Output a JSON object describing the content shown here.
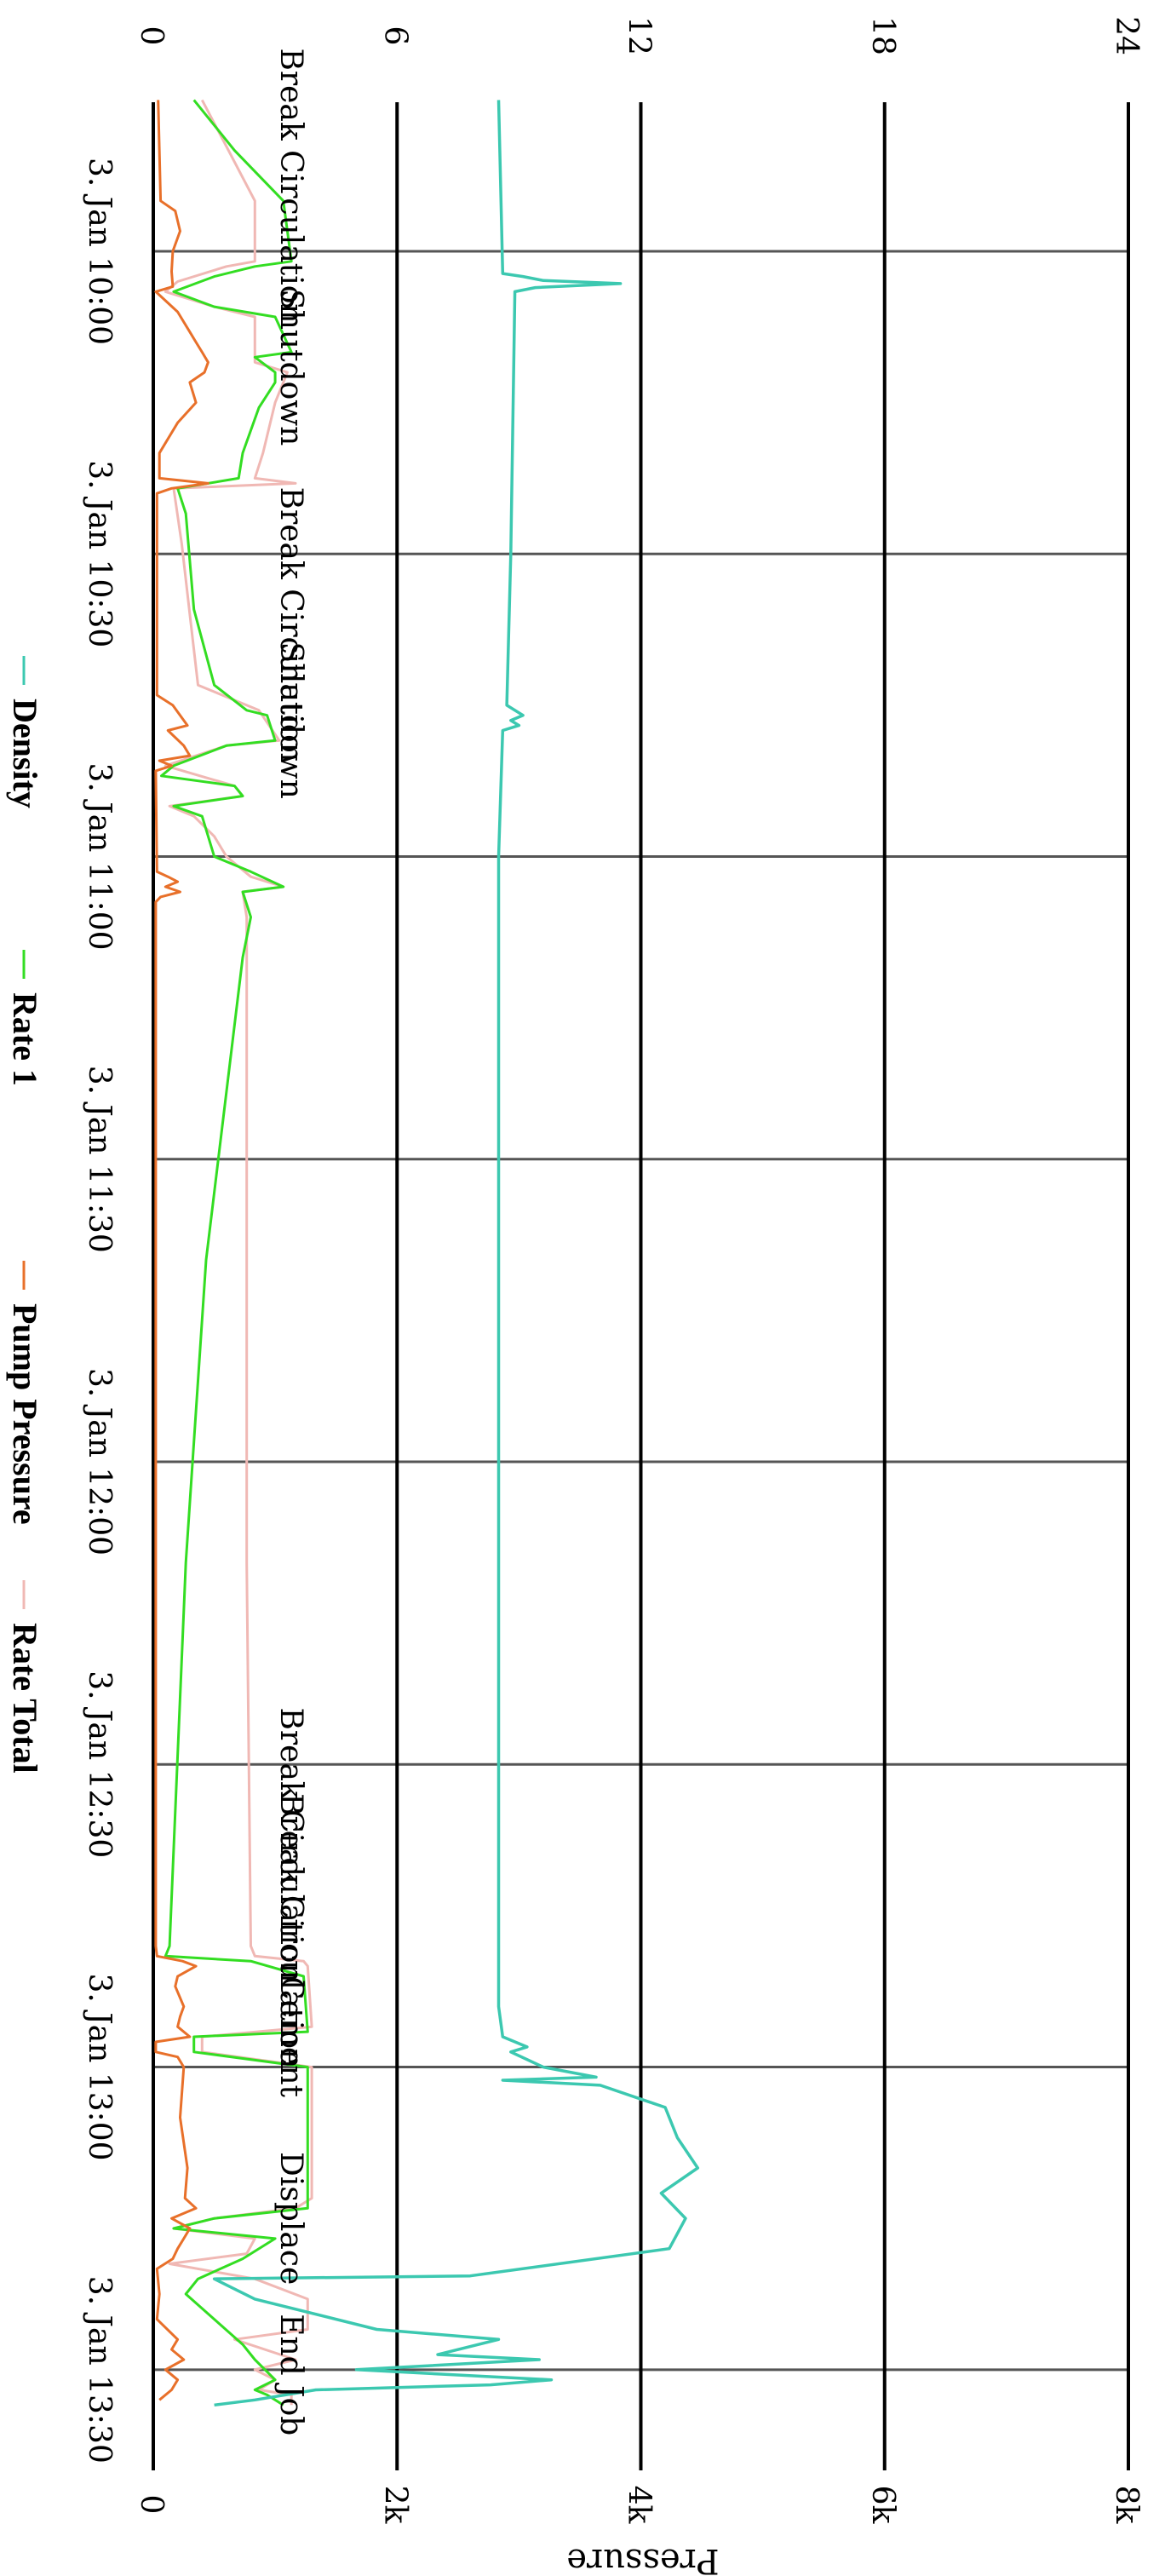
{
  "chart_data": {
    "type": "line",
    "orientation": "rotated-90-clockwise",
    "x_axis": {
      "ticks": [
        "3. Jan 10:00",
        "3. Jan 10:30",
        "3. Jan 11:00",
        "3. Jan 11:30",
        "3. Jan 12:00",
        "3. Jan 12:30",
        "3. Jan 13:00",
        "3. Jan 13:30"
      ],
      "range_minutes": [
        -15,
        157
      ]
    },
    "y_axis_left": {
      "ticks": [
        "0",
        "6",
        "12",
        "18",
        "24"
      ],
      "range": [
        0,
        24
      ]
    },
    "y_axis_right": {
      "title": "Pressure",
      "ticks": [
        "0",
        "2k",
        "4k",
        "6k",
        "8k"
      ],
      "range": [
        0,
        8000
      ]
    },
    "grid": true,
    "legend": {
      "position": "bottom",
      "items": [
        {
          "name": "Density",
          "color": "#3cc8b0"
        },
        {
          "name": "Rate 1",
          "color": "#33dd22"
        },
        {
          "name": "Pump Pressure",
          "color": "#e8702a"
        },
        {
          "name": "Rate Total",
          "color": "#f0b8b4"
        }
      ]
    },
    "events": [
      {
        "label": "Break Circulation",
        "t": -6.5
      },
      {
        "label": "Shutdown",
        "t": 11.5
      },
      {
        "label": "Break Circulation",
        "t": 37
      },
      {
        "label": "Shutdown",
        "t": 46.5
      },
      {
        "label": "Break Circulation",
        "t": 158
      },
      {
        "label": "Break Circulation",
        "t": 166.5
      },
      {
        "label": "Cement",
        "t": 177
      },
      {
        "label": "Displace",
        "t": 195
      },
      {
        "label": "End Job",
        "t": 210.5
      }
    ],
    "series": [
      {
        "name": "Density",
        "axis": "left",
        "color": "#3cc8b0",
        "points": [
          [
            -15,
            8.5
          ],
          [
            2.2,
            8.6
          ],
          [
            2.5,
            9.1
          ],
          [
            2.9,
            9.6
          ],
          [
            3.2,
            11.5
          ],
          [
            3.6,
            9.4
          ],
          [
            4,
            8.9
          ],
          [
            30,
            8.8
          ],
          [
            45,
            8.7
          ],
          [
            46,
            9.1
          ],
          [
            46.5,
            8.8
          ],
          [
            47,
            9.0
          ],
          [
            47.5,
            8.6
          ],
          [
            60,
            8.5
          ],
          [
            100,
            8.5
          ],
          [
            140,
            8.5
          ],
          [
            174,
            8.5
          ],
          [
            177,
            8.6
          ],
          [
            178,
            9.2
          ],
          [
            178.5,
            8.8
          ],
          [
            180,
            9.6
          ],
          [
            181,
            10.9
          ],
          [
            181.3,
            8.6
          ],
          [
            181.8,
            11.0
          ],
          [
            184,
            12.6
          ],
          [
            187,
            12.9
          ],
          [
            190,
            13.4
          ],
          [
            192.5,
            12.5
          ],
          [
            195,
            13.1
          ],
          [
            198,
            12.7
          ],
          [
            200.7,
            7.8
          ],
          [
            201,
            1.5
          ],
          [
            203,
            2.5
          ],
          [
            206,
            5.5
          ],
          [
            207,
            8.5
          ],
          [
            208.5,
            7.0
          ],
          [
            209,
            9.5
          ],
          [
            210,
            5.0
          ],
          [
            211,
            9.8
          ],
          [
            211.5,
            8.3
          ],
          [
            212,
            4.0
          ],
          [
            213,
            2.5
          ],
          [
            213.5,
            1.5
          ]
        ]
      },
      {
        "name": "Rate 1",
        "axis": "left",
        "color": "#33dd22",
        "points": [
          [
            -15,
            1.0
          ],
          [
            -10,
            2.0
          ],
          [
            -5,
            3.2
          ],
          [
            1,
            3.4
          ],
          [
            1.5,
            2.5
          ],
          [
            2.5,
            1.5
          ],
          [
            4,
            0.5
          ],
          [
            5.5,
            1.5
          ],
          [
            6.5,
            3.0
          ],
          [
            10,
            3.4
          ],
          [
            10.5,
            2.5
          ],
          [
            12,
            3.0
          ],
          [
            13,
            3.0
          ],
          [
            15.5,
            2.6
          ],
          [
            20,
            2.2
          ],
          [
            22.5,
            2.1
          ],
          [
            23.5,
            0.6
          ],
          [
            26,
            0.8
          ],
          [
            35.5,
            1.0
          ],
          [
            43,
            1.5
          ],
          [
            45.5,
            2.3
          ],
          [
            46,
            2.8
          ],
          [
            48.5,
            3.0
          ],
          [
            49,
            1.8
          ],
          [
            51,
            0.5
          ],
          [
            52,
            0.2
          ],
          [
            53,
            2.0
          ],
          [
            54,
            2.2
          ],
          [
            55,
            0.5
          ],
          [
            56,
            1.2
          ],
          [
            60,
            1.5
          ],
          [
            61.5,
            2.4
          ],
          [
            63,
            3.2
          ],
          [
            63.5,
            2.2
          ],
          [
            66,
            2.4
          ],
          [
            70,
            2.2
          ],
          [
            100,
            1.3
          ],
          [
            130,
            0.8
          ],
          [
            168,
            0.4
          ],
          [
            169,
            0.3
          ],
          [
            169.5,
            2.4
          ],
          [
            171,
            3.7
          ],
          [
            176.5,
            3.8
          ],
          [
            177,
            1.0
          ],
          [
            178.5,
            1.0
          ],
          [
            180,
            3.8
          ],
          [
            194,
            3.8
          ],
          [
            195,
            1.5
          ],
          [
            196,
            0.5
          ],
          [
            197,
            3.0
          ],
          [
            199,
            2.2
          ],
          [
            201,
            1.1
          ],
          [
            202.5,
            0.8
          ],
          [
            207.5,
            2.2
          ],
          [
            209,
            2.5
          ],
          [
            211,
            3.0
          ],
          [
            212,
            2.5
          ],
          [
            212.5,
            2.8
          ],
          [
            213.5,
            3.2
          ]
        ]
      },
      {
        "name": "Pump Pressure",
        "axis": "right",
        "color": "#e8702a",
        "points": [
          [
            -15,
            40
          ],
          [
            -5,
            60
          ],
          [
            -4,
            180
          ],
          [
            -2,
            220
          ],
          [
            0,
            160
          ],
          [
            2,
            150
          ],
          [
            3.5,
            160
          ],
          [
            4,
            20
          ],
          [
            6,
            200
          ],
          [
            8,
            300
          ],
          [
            9,
            350
          ],
          [
            10,
            400
          ],
          [
            11,
            450
          ],
          [
            12,
            420
          ],
          [
            13,
            300
          ],
          [
            15,
            350
          ],
          [
            17,
            200
          ],
          [
            20,
            50
          ],
          [
            22.5,
            50
          ],
          [
            23,
            450
          ],
          [
            23.5,
            150
          ],
          [
            24,
            30
          ],
          [
            44,
            30
          ],
          [
            45,
            160
          ],
          [
            47,
            280
          ],
          [
            47.5,
            120
          ],
          [
            49,
            250
          ],
          [
            50,
            300
          ],
          [
            50.5,
            50
          ],
          [
            51,
            150
          ],
          [
            51.5,
            20
          ],
          [
            61.5,
            30
          ],
          [
            62,
            120
          ],
          [
            62.5,
            200
          ],
          [
            63,
            100
          ],
          [
            63.5,
            220
          ],
          [
            64,
            60
          ],
          [
            64.5,
            20
          ],
          [
            168,
            20
          ],
          [
            169,
            30
          ],
          [
            169.5,
            240
          ],
          [
            170,
            350
          ],
          [
            171,
            200
          ],
          [
            172,
            180
          ],
          [
            174,
            250
          ],
          [
            175,
            220
          ],
          [
            176,
            200
          ],
          [
            177,
            300
          ],
          [
            177.5,
            20
          ],
          [
            178.5,
            20
          ],
          [
            179,
            200
          ],
          [
            180,
            250
          ],
          [
            185,
            220
          ],
          [
            190,
            280
          ],
          [
            193,
            260
          ],
          [
            194,
            350
          ],
          [
            195,
            150
          ],
          [
            196,
            300
          ],
          [
            197,
            250
          ],
          [
            198,
            200
          ],
          [
            199,
            160
          ],
          [
            200,
            30
          ],
          [
            202.5,
            50
          ],
          [
            205,
            30
          ],
          [
            207,
            200
          ],
          [
            208,
            150
          ],
          [
            209,
            250
          ],
          [
            210,
            100
          ],
          [
            211,
            200
          ],
          [
            212,
            150
          ],
          [
            213,
            50
          ]
        ]
      },
      {
        "name": "Rate Total",
        "axis": "left",
        "color": "#f0b8b4",
        "points": [
          [
            -15,
            1.2
          ],
          [
            -5,
            2.5
          ],
          [
            1,
            2.5
          ],
          [
            1.5,
            1.8
          ],
          [
            3,
            0.6
          ],
          [
            4,
            0.3
          ],
          [
            5.5,
            1.5
          ],
          [
            6.5,
            2.5
          ],
          [
            11,
            2.5
          ],
          [
            12,
            3.3
          ],
          [
            13,
            3.2
          ],
          [
            15,
            3.0
          ],
          [
            20,
            2.7
          ],
          [
            22.5,
            2.5
          ],
          [
            23,
            3.5
          ],
          [
            23.5,
            0.5
          ],
          [
            29,
            0.7
          ],
          [
            36,
            0.9
          ],
          [
            43,
            1.1
          ],
          [
            45.5,
            2.6
          ],
          [
            48.5,
            3.1
          ],
          [
            49,
            1.8
          ],
          [
            51,
            0.3
          ],
          [
            53,
            2.0
          ],
          [
            54,
            2.2
          ],
          [
            55,
            0.4
          ],
          [
            56,
            1.0
          ],
          [
            58,
            1.5
          ],
          [
            60,
            1.8
          ],
          [
            62,
            2.4
          ],
          [
            63,
            3.2
          ],
          [
            63.5,
            2.2
          ],
          [
            66,
            2.3
          ],
          [
            100,
            2.3
          ],
          [
            130,
            2.3
          ],
          [
            168,
            2.4
          ],
          [
            169,
            2.5
          ],
          [
            169.5,
            3.7
          ],
          [
            170,
            3.8
          ],
          [
            176,
            3.9
          ],
          [
            177,
            1.2
          ],
          [
            178.5,
            1.2
          ],
          [
            180,
            3.9
          ],
          [
            193,
            3.9
          ],
          [
            194,
            3.5
          ],
          [
            195,
            1.5
          ],
          [
            196,
            0.5
          ],
          [
            197,
            2.5
          ],
          [
            198.5,
            2.3
          ],
          [
            199.5,
            0.4
          ],
          [
            201,
            2.5
          ],
          [
            203,
            3.8
          ],
          [
            206,
            3.8
          ],
          [
            207,
            2.0
          ],
          [
            209,
            3.5
          ],
          [
            210,
            2.5
          ],
          [
            211,
            3.0
          ],
          [
            212,
            2.6
          ],
          [
            212.5,
            3.4
          ],
          [
            213.5,
            3.4
          ]
        ]
      }
    ]
  }
}
